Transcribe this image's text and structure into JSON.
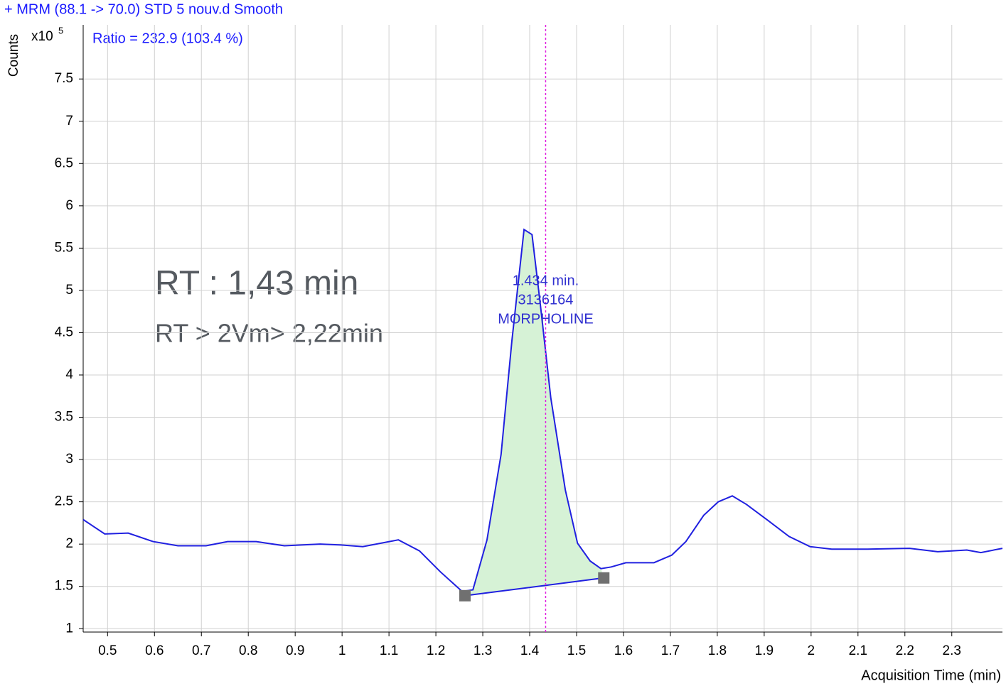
{
  "chart_data": {
    "type": "line",
    "title": "+ MRM (88.1 -> 70.0) STD 5 nouv.d  Smooth",
    "ratio_label": "Ratio = 232.9 (103.4 %)",
    "y_label": "Counts",
    "y_multiplier": {
      "base": "x10",
      "exponent": "5"
    },
    "x_label": "Acquisition Time (min)",
    "annotations": [
      "RT : 1,43 min",
      "RT > 2Vm> 2,22min"
    ],
    "xlim": [
      0.448,
      2.408
    ],
    "ylim": [
      0.96,
      8.14
    ],
    "xticks": [
      0.5,
      0.6,
      0.7,
      0.8,
      0.9,
      1,
      1.1,
      1.2,
      1.3,
      1.4,
      1.5,
      1.6,
      1.7,
      1.8,
      1.9,
      2,
      2.1,
      2.2,
      2.3
    ],
    "yticks": [
      1,
      1.5,
      2,
      2.5,
      3,
      3.5,
      4,
      4.5,
      5,
      5.5,
      6,
      6.5,
      7,
      7.5
    ],
    "grid": true,
    "x": [
      0.448,
      0.494,
      0.544,
      0.597,
      0.65,
      0.71,
      0.756,
      0.817,
      0.877,
      0.953,
      0.998,
      1.044,
      1.12,
      1.165,
      1.21,
      1.256,
      1.279,
      1.309,
      1.339,
      1.362,
      1.388,
      1.405,
      1.423,
      1.445,
      1.476,
      1.502,
      1.529,
      1.552,
      1.574,
      1.605,
      1.665,
      1.703,
      1.733,
      1.771,
      1.802,
      1.832,
      1.862,
      1.908,
      1.953,
      1.998,
      2.044,
      2.12,
      2.21,
      2.27,
      2.332,
      2.362,
      2.408
    ],
    "series": [
      {
        "name": "MORPHOLINE",
        "color": "#2020e0",
        "values": [
          2.29,
          2.12,
          2.13,
          2.03,
          1.98,
          1.98,
          2.03,
          2.03,
          1.98,
          2.0,
          1.99,
          1.97,
          2.05,
          1.92,
          1.67,
          1.44,
          1.46,
          2.05,
          3.06,
          4.4,
          5.72,
          5.66,
          4.82,
          3.73,
          2.64,
          2.01,
          1.8,
          1.71,
          1.73,
          1.78,
          1.78,
          1.87,
          2.03,
          2.34,
          2.5,
          2.57,
          2.47,
          2.28,
          2.09,
          1.97,
          1.94,
          1.94,
          1.95,
          1.91,
          1.93,
          1.9,
          1.95
        ]
      }
    ],
    "baseline_x": [
      1.262,
      1.558
    ],
    "baseline_y": [
      1.39,
      1.6
    ],
    "fill_color": "#d6f2d6",
    "rt_marker": {
      "value": 1.434,
      "label": "1.434 min."
    },
    "rt_color": "#e020e0",
    "peak_label": [
      "3136164",
      "MORPHOLINE"
    ]
  }
}
